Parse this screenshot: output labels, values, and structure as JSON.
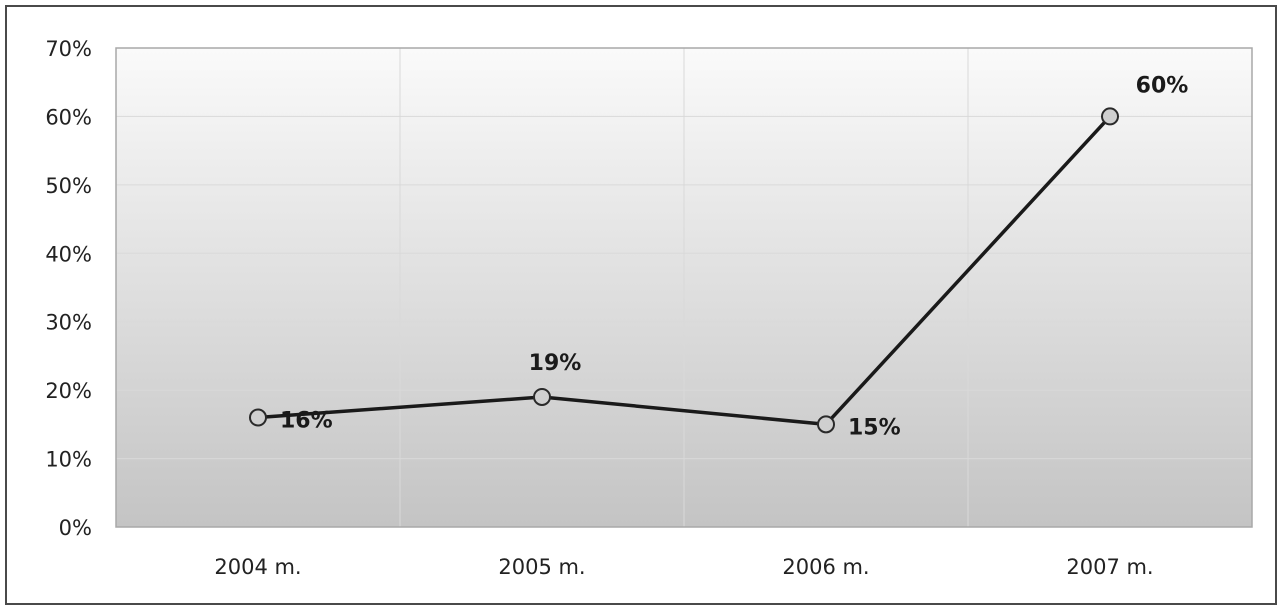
{
  "chart_data": {
    "type": "line",
    "categories": [
      "2004 m.",
      "2005 m.",
      "2006 m.",
      "2007 m."
    ],
    "series": [
      {
        "values": [
          16,
          19,
          15,
          60
        ],
        "labels": [
          "16%",
          "19%",
          "15%",
          "60%"
        ]
      }
    ],
    "y_ticks": [
      "0%",
      "10%",
      "20%",
      "30%",
      "40%",
      "50%",
      "60%",
      "70%"
    ],
    "ylim": [
      0,
      70
    ],
    "grid": true,
    "legend": "none",
    "colors": {
      "line": "#1a1a1a",
      "marker_fill": "#cfcfcf",
      "marker_stroke": "#2a2a2a",
      "grid": "#d9d9d9",
      "plot_top": "#fafafa",
      "plot_bottom": "#c4c4c4",
      "frame": "#4a4a4a"
    }
  }
}
